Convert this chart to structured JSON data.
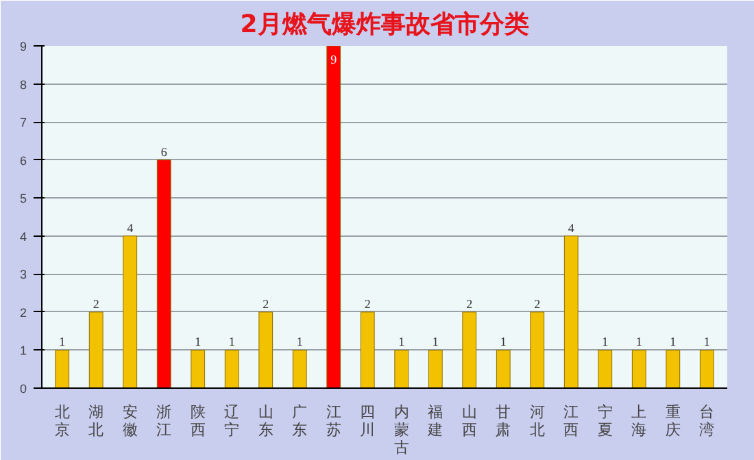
{
  "chart_data": {
    "type": "bar",
    "title": "2月燃气爆炸事故省市分类",
    "categories": [
      "北京",
      "湖北",
      "安徽",
      "浙江",
      "陕西",
      "辽宁",
      "山东",
      "广东",
      "江苏",
      "四川",
      "内蒙古",
      "福建",
      "山西",
      "甘肃",
      "河北",
      "江西",
      "宁夏",
      "上海",
      "重庆",
      "台湾"
    ],
    "values": [
      1,
      2,
      4,
      6,
      1,
      1,
      2,
      1,
      9,
      2,
      1,
      1,
      2,
      1,
      2,
      4,
      1,
      1,
      1,
      1
    ],
    "colors": [
      "#f2c200",
      "#f2c200",
      "#f2c200",
      "#ff0000",
      "#f2c200",
      "#f2c200",
      "#f2c200",
      "#f2c200",
      "#ff0000",
      "#f2c200",
      "#f2c200",
      "#f2c200",
      "#f2c200",
      "#f2c200",
      "#f2c200",
      "#f2c200",
      "#f2c200",
      "#f2c200",
      "#f2c200",
      "#f2c200"
    ],
    "ylim": [
      0,
      9
    ],
    "yticks": [
      0,
      1,
      2,
      3,
      4,
      5,
      6,
      7,
      8,
      9
    ],
    "grid": "y",
    "data_labels": true
  }
}
